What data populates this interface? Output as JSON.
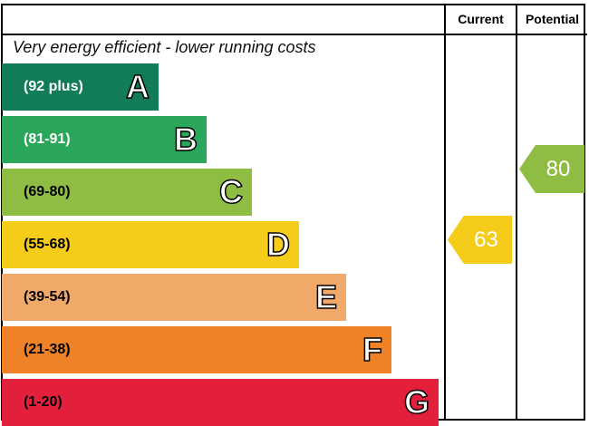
{
  "chart_data": {
    "type": "bar",
    "header": {
      "current": "Current",
      "potential": "Potential"
    },
    "top_label": "Very energy efficient - lower running costs",
    "bands": [
      {
        "letter": "A",
        "range": "(92 plus)",
        "color": "#117c55"
      },
      {
        "letter": "B",
        "range": "(81-91)",
        "color": "#2aa75b"
      },
      {
        "letter": "C",
        "range": "(69-80)",
        "color": "#8fbc43"
      },
      {
        "letter": "D",
        "range": "(55-68)",
        "color": "#f6cc1a"
      },
      {
        "letter": "E",
        "range": "(39-54)",
        "color": "#f1a96a"
      },
      {
        "letter": "F",
        "range": "(21-38)",
        "color": "#ef8227"
      },
      {
        "letter": "G",
        "range": "(1-20)",
        "color": "#e3203c"
      }
    ],
    "current": {
      "value": "63",
      "band": "D",
      "color": "#f6cc1a"
    },
    "potential": {
      "value": "80",
      "band": "C",
      "color": "#8fbc43"
    }
  }
}
